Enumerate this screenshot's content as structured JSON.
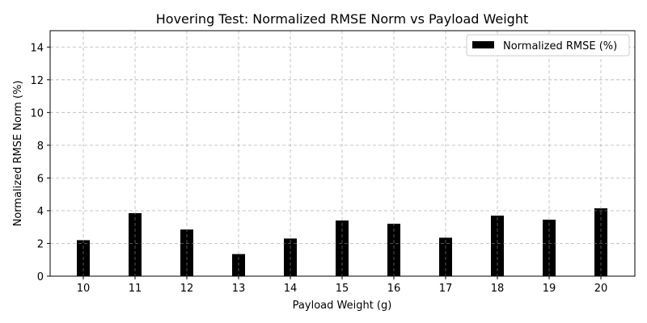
{
  "chart_data": {
    "type": "bar",
    "title": "Hovering Test: Normalized RMSE Norm vs Payload Weight",
    "xlabel": "Payload Weight (g)",
    "ylabel": "Normalized RMSE Norm (%)",
    "categories": [
      "10",
      "11",
      "12",
      "13",
      "14",
      "15",
      "16",
      "17",
      "18",
      "19",
      "20"
    ],
    "series": [
      {
        "name": "Normalized RMSE (%)",
        "values": [
          2.2,
          3.85,
          2.85,
          1.35,
          2.3,
          3.4,
          3.2,
          2.35,
          3.7,
          3.45,
          4.15
        ],
        "color": "#000000"
      }
    ],
    "ylim": [
      0,
      15
    ],
    "yticks": [
      "0",
      "2",
      "4",
      "6",
      "8",
      "10",
      "12",
      "14"
    ],
    "grid": true,
    "legend_position": "top-right"
  }
}
